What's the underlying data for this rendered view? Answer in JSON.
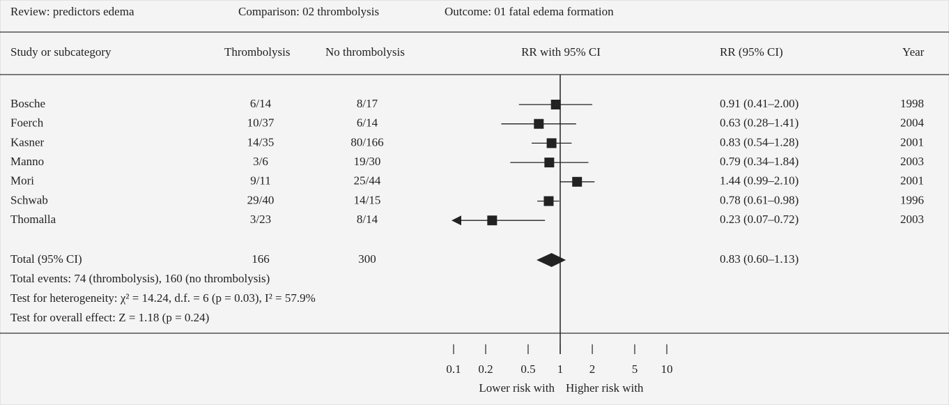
{
  "chart_data": {
    "type": "forest",
    "header": {
      "review": "Review: predictors edema",
      "comparison": "Comparison: 02 thrombolysis",
      "outcome": "Outcome: 01 fatal edema formation"
    },
    "columns": [
      "Study or subcategory",
      "Thrombolysis",
      "No thrombolysis",
      "RR with 95% CI",
      "RR (95% CI)",
      "Year"
    ],
    "categories": [
      "Bosche",
      "Foerch",
      "Kasner",
      "Manno",
      "Mori",
      "Schwab",
      "Thomalla"
    ],
    "thrombolysis": [
      "6/14",
      "10/37",
      "14/35",
      "3/6",
      "9/11",
      "29/40",
      "3/23"
    ],
    "no_thrombolysis": [
      "8/17",
      "6/14",
      "80/166",
      "19/30",
      "25/44",
      "14/15",
      "8/14"
    ],
    "values": [
      0.91,
      0.63,
      0.83,
      0.79,
      1.44,
      0.78,
      0.23
    ],
    "lower": [
      0.41,
      0.28,
      0.54,
      0.34,
      0.99,
      0.61,
      0.07
    ],
    "upper": [
      2.0,
      1.41,
      1.28,
      1.84,
      2.1,
      0.98,
      0.72
    ],
    "value_labels": [
      "0.91 (0.41–2.00)",
      "0.63 (0.28–1.41)",
      "0.83 (0.54–1.28)",
      "0.79 (0.34–1.84)",
      "1.44 (0.99–2.10)",
      "0.78 (0.61–0.98)",
      "0.23 (0.07–0.72)"
    ],
    "years": [
      1998,
      2004,
      2001,
      2003,
      2001,
      1996,
      2003
    ],
    "total": {
      "label": "Total (95% CI)",
      "thrombolysis": 166,
      "no_thrombolysis": 300,
      "value": 0.83,
      "lower": 0.6,
      "upper": 1.13,
      "value_label": "0.83 (0.60–1.13)"
    },
    "notes": [
      "Total events: 74 (thrombolysis), 160 (no thrombolysis)",
      "Test for heterogeneity: χ² = 14.24, d.f. = 6 (p = 0.03), I² = 57.9%",
      "Test for overall effect: Z = 1.18 (p = 0.24)"
    ],
    "xlim": [
      0.1,
      10
    ],
    "xticks": [
      0.1,
      0.2,
      0.5,
      1,
      2,
      5,
      10
    ],
    "log_x": true,
    "xlabels": [
      "Lower risk with",
      "Higher risk with"
    ],
    "color": "#222222"
  }
}
